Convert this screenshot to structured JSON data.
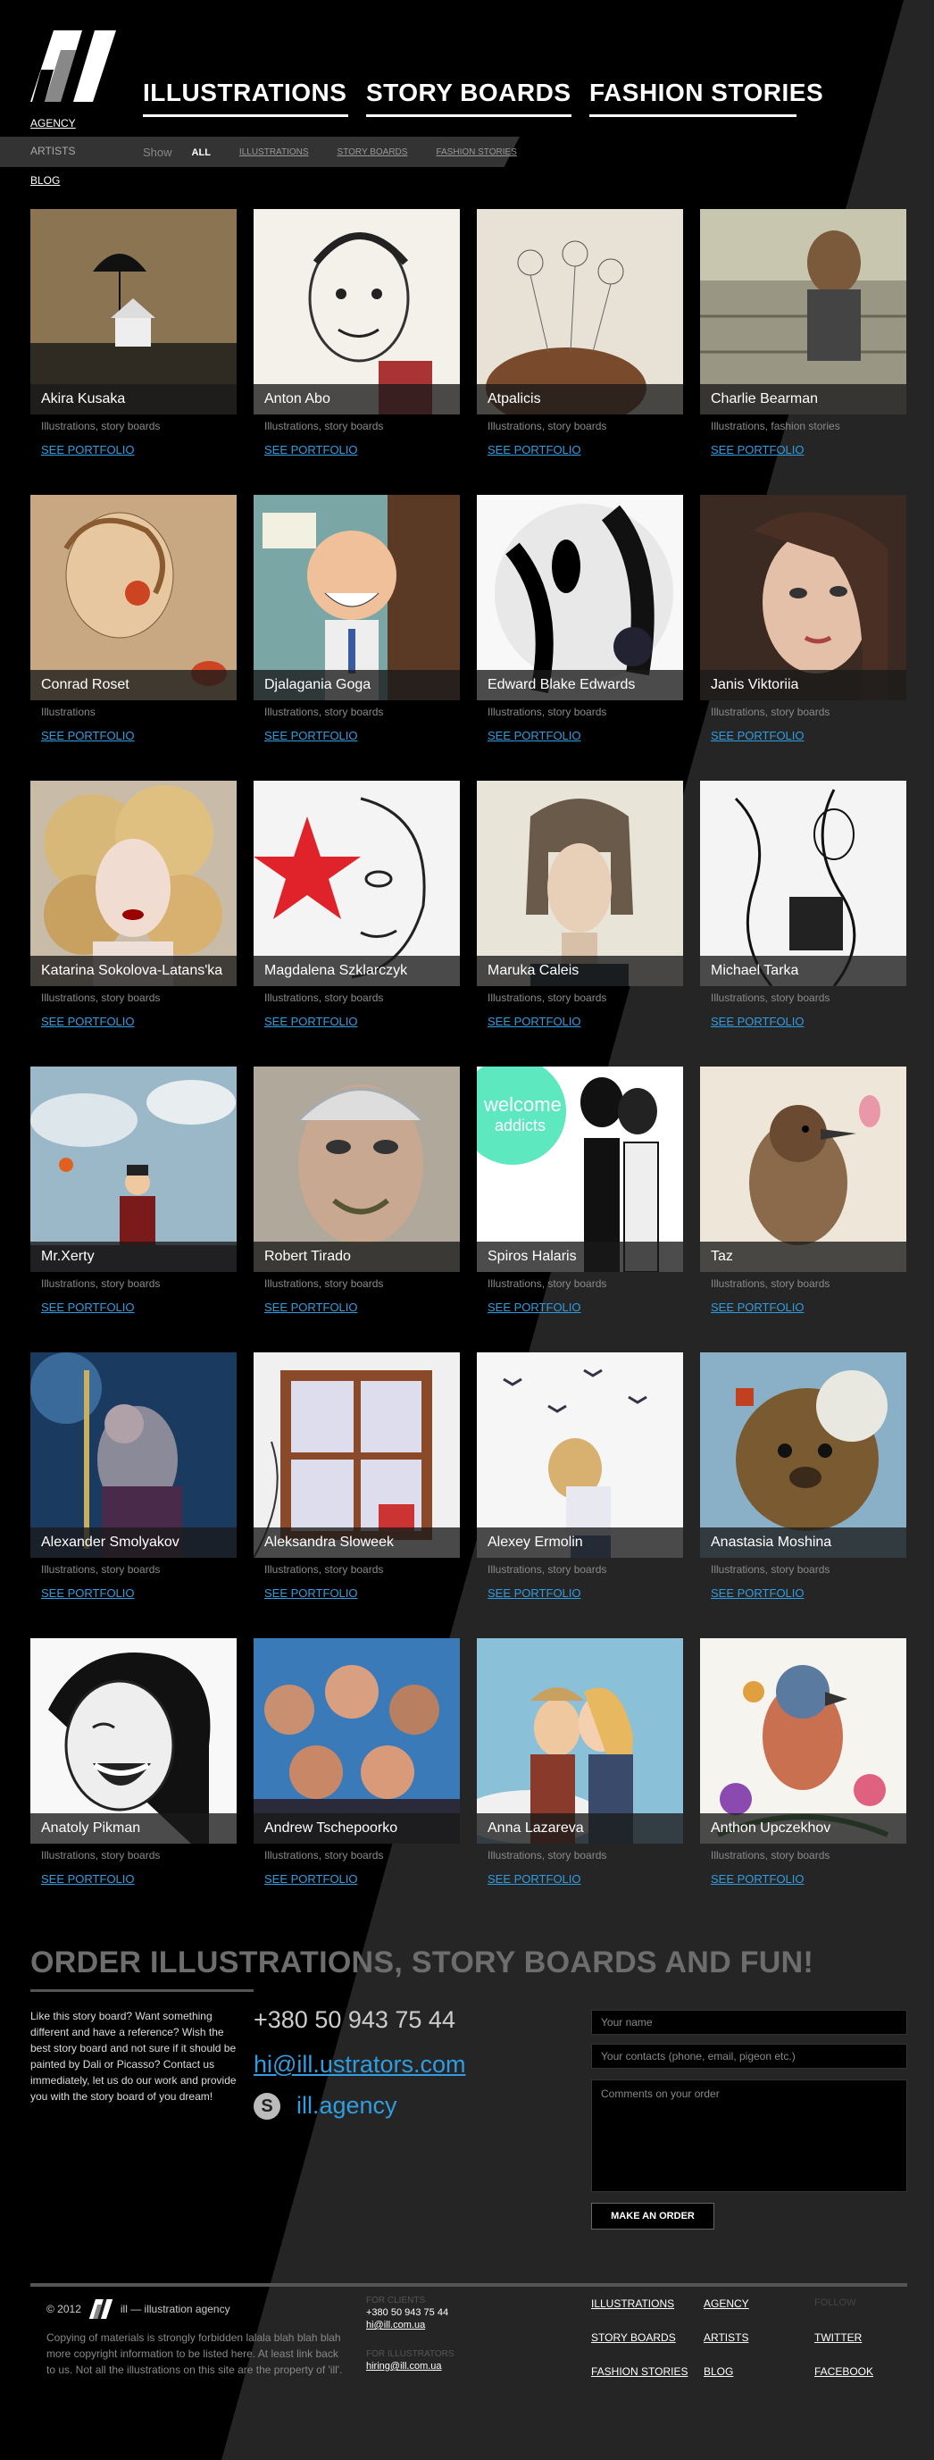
{
  "header": {
    "logo_alt": "ill",
    "nav": [
      {
        "label": "ILLUSTRATIONS"
      },
      {
        "label": "STORY BOARDS"
      },
      {
        "label": "FASHION STORIES"
      }
    ],
    "side_menu": [
      {
        "label": "AGENCY"
      },
      {
        "label": "ARTISTS"
      },
      {
        "label": "BLOG"
      }
    ],
    "filter": {
      "show_label": "Show",
      "active": "ALL",
      "options": [
        "ILLUSTRATIONS",
        "STORY BOARDS",
        "FASHION STORIES"
      ]
    }
  },
  "see_portfolio_label": "SEE PORTFOLIO",
  "artists": [
    {
      "name": "Akira Kusaka",
      "categories": "Illustrations, story boards",
      "thumb": "house-umbrella"
    },
    {
      "name": "Anton Abo",
      "categories": "Illustrations, story boards",
      "thumb": "portrait-sketch"
    },
    {
      "name": "Atpalicis",
      "categories": "Illustrations, story boards",
      "thumb": "birds-sketch"
    },
    {
      "name": "Charlie Bearman",
      "categories": "Illustrations, fashion stories",
      "thumb": "woman-porch"
    },
    {
      "name": "Conrad Roset",
      "categories": "Illustrations",
      "thumb": "woman-red"
    },
    {
      "name": "Djalagania Goga",
      "categories": "Illustrations, story boards",
      "thumb": "cartoon-boy"
    },
    {
      "name": "Edward Blake Edwards",
      "categories": "Illustrations, story boards",
      "thumb": "ink-circle"
    },
    {
      "name": "Janis Viktoriia",
      "categories": "Illustrations, story boards",
      "thumb": "woman-face"
    },
    {
      "name": "Katarina Sokolova-Latans'ka",
      "categories": "Illustrations, story boards",
      "thumb": "curly-blonde"
    },
    {
      "name": "Magdalena Szklarczyk",
      "categories": "Illustrations, story boards",
      "thumb": "red-star"
    },
    {
      "name": "Maruka Caleis",
      "categories": "Illustrations, story boards",
      "thumb": "bob-hair"
    },
    {
      "name": "Michael Tarka",
      "categories": "Illustrations, story boards",
      "thumb": "fashion-line"
    },
    {
      "name": "Mr.Xerty",
      "categories": "Illustrations, story boards",
      "thumb": "sky-man"
    },
    {
      "name": "Robert Tirado",
      "categories": "Illustrations, story boards",
      "thumb": "old-man"
    },
    {
      "name": "Spiros Halaris",
      "categories": "Illustrations, story boards",
      "thumb": "welcome-addicts"
    },
    {
      "name": "Taz",
      "categories": "Illustrations, story boards",
      "thumb": "bird"
    },
    {
      "name": "Alexander Smolyakov",
      "categories": "Illustrations, story boards",
      "thumb": "rat-king"
    },
    {
      "name": "Aleksandra Sloweek",
      "categories": "Illustrations, story boards",
      "thumb": "window"
    },
    {
      "name": "Alexey Ermolin",
      "categories": "Illustrations, story boards",
      "thumb": "girl-birds"
    },
    {
      "name": "Anastasia Moshina",
      "categories": "Illustrations, story boards",
      "thumb": "bear"
    },
    {
      "name": "Anatoly Pikman",
      "categories": "Illustrations, story boards",
      "thumb": "laughing-woman"
    },
    {
      "name": "Andrew Tschepoorko",
      "categories": "Illustrations, story boards",
      "thumb": "crowd"
    },
    {
      "name": "Anna Lazareva",
      "categories": "Illustrations, story boards",
      "thumb": "kiss"
    },
    {
      "name": "Anthon Upczekhov",
      "categories": "Illustrations, story boards",
      "thumb": "flower-bird"
    }
  ],
  "order": {
    "title": "ORDER ILLUSTRATIONS, STORY BOARDS AND FUN!",
    "text": "Like this story board? Want something different and have a reference? Wish the best story board and not sure if it should be painted by Dali or Picasso? Contact us immediately, let us do our work and provide you with the story board of you dream!",
    "phone": "+380 50 943 75 44",
    "email": "hi@ill.ustrators.com",
    "skype": "ill.agency",
    "name_placeholder": "Your name",
    "contacts_placeholder": "Your contacts (phone, email, pigeon etc.)",
    "comments_placeholder": "Comments on your order",
    "button": "MAKE AN ORDER"
  },
  "footer": {
    "copyright": "© 2012",
    "agency": "ill — illustration agency",
    "legal": "Copying of materials is strongly forbidden lalala blah blah blah more copyright information to be listed here. At least link back to us. Not all the illustrations on this site are the property of 'ill'.",
    "for_clients_label": "FOR CLIENTS",
    "clients_phone": "+380 50 943 75 44",
    "clients_email": "hi@ill.com.ua",
    "for_illustrators_label": "FOR ILLUSTRATORS",
    "illustrators_email": "hiring@ill.com.ua",
    "nav_col1": [
      "ILLUSTRATIONS",
      "STORY BOARDS",
      "FASHION STORIES"
    ],
    "nav_col2": [
      "AGENCY",
      "ARTISTS",
      "BLOG"
    ],
    "follow_label": "FOLLOW",
    "social": [
      "TWITTER",
      "FACEBOOK"
    ]
  }
}
